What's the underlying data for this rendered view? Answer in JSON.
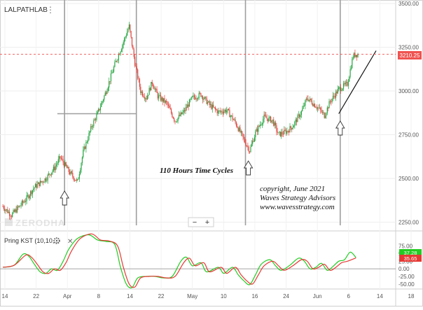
{
  "symbol": "LALPATHLAB",
  "watermark": "ZERODHA",
  "zoom_controls": {
    "minus": "−",
    "plus": "+"
  },
  "annotations": {
    "cycles": "110 Hours Time Cycles",
    "copyright_lines": [
      "copyright, June 2021",
      "Waves Strategy Advisors",
      "www.wavesstrategy.com"
    ]
  },
  "colors": {
    "up_candle": "#26a641",
    "down_candle": "#e0443c",
    "kst_line": "#e53935",
    "kst_signal": "#22cc22",
    "price_badge": "#ef5350",
    "cycle_line": "#9e9e9e"
  },
  "indicator": {
    "label": "Pring KST (10,10,...",
    "badge_values": [
      "37.28",
      "35.65"
    ],
    "badge_colors": [
      "#22cc22",
      "#e53935"
    ],
    "y_ticks": [
      "75.00",
      "50.00",
      "25.00",
      "0.00",
      "-25.00",
      "-50.00"
    ]
  },
  "chart_data": {
    "type": "candlestick",
    "title": "LALPATHLAB",
    "price_axis": {
      "ticks": [
        "3500.00",
        "3250.00",
        "3000.00",
        "2750.00",
        "2500.00",
        "2250.00"
      ],
      "ylim": [
        2200,
        3520
      ]
    },
    "last_price": "3210.25",
    "x_ticks": [
      "14",
      "22",
      "Apr",
      "8",
      "14",
      "22",
      "May",
      "10",
      "16",
      "24",
      "Jun",
      "6",
      "14",
      "18"
    ],
    "path": [
      [
        0,
        2340
      ],
      [
        3,
        2290
      ],
      [
        8,
        2380
      ],
      [
        11,
        2450
      ],
      [
        15,
        2500
      ],
      [
        18,
        2560
      ],
      [
        20,
        2620
      ],
      [
        23,
        2540
      ],
      [
        26,
        2480
      ],
      [
        28,
        2650
      ],
      [
        31,
        2800
      ],
      [
        33,
        2870
      ],
      [
        36,
        3000
      ],
      [
        39,
        3150
      ],
      [
        42,
        3280
      ],
      [
        44,
        3370
      ],
      [
        46,
        3160
      ],
      [
        48,
        3000
      ],
      [
        50,
        2960
      ],
      [
        52,
        3050
      ],
      [
        54,
        2970
      ],
      [
        57,
        2930
      ],
      [
        60,
        2830
      ],
      [
        63,
        2880
      ],
      [
        66,
        2960
      ],
      [
        69,
        2980
      ],
      [
        72,
        2920
      ],
      [
        75,
        2880
      ],
      [
        78,
        2890
      ],
      [
        81,
        2820
      ],
      [
        84,
        2720
      ],
      [
        86,
        2660
      ],
      [
        88,
        2760
      ],
      [
        91,
        2850
      ],
      [
        94,
        2830
      ],
      [
        96,
        2750
      ],
      [
        99,
        2770
      ],
      [
        101,
        2800
      ],
      [
        104,
        2880
      ],
      [
        106,
        2960
      ],
      [
        108,
        2930
      ],
      [
        110,
        2900
      ],
      [
        112,
        2860
      ],
      [
        114,
        2940
      ],
      [
        117,
        3010
      ],
      [
        120,
        3040
      ],
      [
        122,
        3200
      ],
      [
        123,
        3210
      ]
    ],
    "cycle_marks": [
      22,
      47,
      85,
      118
    ],
    "cycle_arrows": [
      22,
      86,
      118
    ],
    "cycle_box": {
      "x_range": [
        19,
        47
      ],
      "level": 2870
    },
    "trend_line": {
      "from": [
        117,
        2870
      ],
      "to": [
        130,
        3230
      ]
    },
    "kst": {
      "ylim": [
        -62,
        118
      ],
      "line": [
        [
          0,
          5
        ],
        [
          4,
          12
        ],
        [
          8,
          45
        ],
        [
          10,
          38
        ],
        [
          12,
          15
        ],
        [
          14,
          -10
        ],
        [
          16,
          -15
        ],
        [
          18,
          0
        ],
        [
          20,
          -5
        ],
        [
          22,
          20
        ],
        [
          24,
          60
        ],
        [
          27,
          100
        ],
        [
          31,
          115
        ],
        [
          34,
          95
        ],
        [
          37,
          92
        ],
        [
          40,
          75
        ],
        [
          42,
          5
        ],
        [
          44,
          -50
        ],
        [
          46,
          -60
        ],
        [
          48,
          -30
        ],
        [
          51,
          -25
        ],
        [
          54,
          -25
        ],
        [
          57,
          -30
        ],
        [
          60,
          -25
        ],
        [
          63,
          20
        ],
        [
          65,
          35
        ],
        [
          67,
          10
        ],
        [
          70,
          20
        ],
        [
          72,
          -10
        ],
        [
          76,
          5
        ],
        [
          78,
          -15
        ],
        [
          81,
          5
        ],
        [
          83,
          -20
        ],
        [
          85,
          -40
        ],
        [
          87,
          -50
        ],
        [
          89,
          -20
        ],
        [
          91,
          10
        ],
        [
          94,
          25
        ],
        [
          96,
          10
        ],
        [
          98,
          -5
        ],
        [
          101,
          10
        ],
        [
          104,
          30
        ],
        [
          106,
          25
        ],
        [
          108,
          0
        ],
        [
          110,
          5
        ],
        [
          112,
          15
        ],
        [
          114,
          -5
        ],
        [
          116,
          5
        ],
        [
          118,
          20
        ],
        [
          120,
          25
        ],
        [
          123,
          36
        ]
      ],
      "signal": [
        [
          0,
          5
        ],
        [
          4,
          12
        ],
        [
          7,
          48
        ],
        [
          9,
          42
        ],
        [
          11,
          15
        ],
        [
          13,
          -10
        ],
        [
          15,
          -15
        ],
        [
          17,
          0
        ],
        [
          19,
          -5
        ],
        [
          21,
          25
        ],
        [
          23,
          65
        ],
        [
          26,
          100
        ],
        [
          30,
          112
        ],
        [
          33,
          95
        ],
        [
          36,
          90
        ],
        [
          39,
          80
        ],
        [
          41,
          5
        ],
        [
          43,
          -50
        ],
        [
          45,
          -62
        ],
        [
          47,
          -30
        ],
        [
          50,
          -25
        ],
        [
          53,
          -25
        ],
        [
          56,
          -30
        ],
        [
          59,
          -25
        ],
        [
          62,
          25
        ],
        [
          64,
          38
        ],
        [
          66,
          10
        ],
        [
          69,
          20
        ],
        [
          71,
          -10
        ],
        [
          75,
          5
        ],
        [
          77,
          -15
        ],
        [
          80,
          5
        ],
        [
          82,
          -20
        ],
        [
          84,
          -40
        ],
        [
          86,
          -52
        ],
        [
          88,
          -20
        ],
        [
          90,
          15
        ],
        [
          93,
          30
        ],
        [
          95,
          10
        ],
        [
          97,
          -5
        ],
        [
          100,
          12
        ],
        [
          103,
          35
        ],
        [
          105,
          25
        ],
        [
          107,
          0
        ],
        [
          109,
          5
        ],
        [
          111,
          18
        ],
        [
          113,
          -5
        ],
        [
          115,
          8
        ],
        [
          117,
          25
        ],
        [
          119,
          30
        ],
        [
          121,
          55
        ],
        [
          123,
          37
        ]
      ]
    }
  }
}
